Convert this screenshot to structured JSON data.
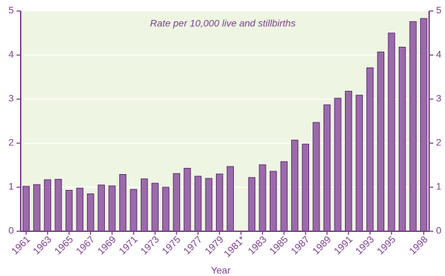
{
  "chart_data": {
    "type": "bar",
    "subtitle": "Rate per 10,000 live and stillbirths",
    "x_label": "Year",
    "categories": [
      "1961",
      null,
      "1963",
      null,
      "1965",
      null,
      "1967",
      null,
      "1969",
      null,
      "1971",
      null,
      "1973",
      null,
      "1975",
      null,
      "1977",
      null,
      "1979",
      null,
      "1981*",
      null,
      "1983",
      null,
      "1985",
      null,
      "1987",
      null,
      "1989",
      null,
      "1991",
      null,
      "1993",
      null,
      "1995",
      null,
      null,
      "1998"
    ],
    "values": [
      1.02,
      1.06,
      1.17,
      1.18,
      0.93,
      0.98,
      0.85,
      1.05,
      1.03,
      1.29,
      0.95,
      1.19,
      1.09,
      1.0,
      1.31,
      1.43,
      1.25,
      1.2,
      1.3,
      1.47,
      null,
      1.22,
      1.51,
      1.36,
      1.58,
      2.07,
      1.98,
      2.47,
      2.87,
      3.02,
      3.18,
      3.09,
      3.71,
      4.07,
      4.5,
      4.18,
      4.76,
      4.83
    ],
    "color": "#9b6aab",
    "ylim": [
      0,
      5
    ],
    "yticks": [
      0,
      1,
      2,
      3,
      4,
      5
    ],
    "y2lim": [
      0,
      5
    ],
    "y2ticks": [
      0,
      1,
      2,
      3,
      4,
      5
    ],
    "grid": true
  }
}
